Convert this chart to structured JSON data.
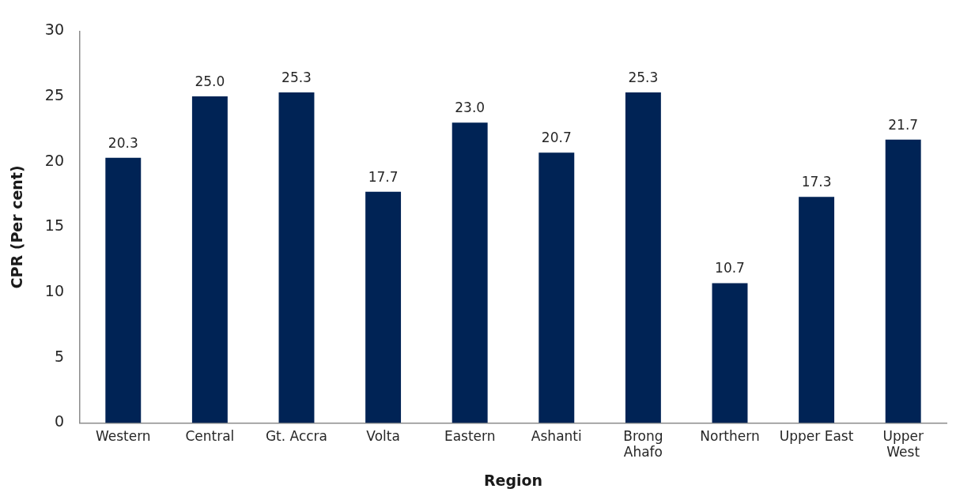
{
  "chart_data": {
    "type": "bar",
    "xlabel": "Region",
    "ylabel": "CPR (Per cent)",
    "categories": [
      "Western",
      "Central",
      "Gt. Accra",
      "Volta",
      "Eastern",
      "Ashanti",
      "Brong Ahafo",
      "Northern",
      "Upper East",
      "Upper West"
    ],
    "values": [
      20.3,
      25.0,
      25.3,
      17.7,
      23.0,
      20.7,
      25.3,
      10.7,
      17.3,
      21.7
    ],
    "value_labels": [
      "20.3",
      "25.0",
      "25.3",
      "17.7",
      "23.0",
      "20.7",
      "25.3",
      "10.7",
      "17.3",
      "21.7"
    ],
    "color": "#002355",
    "ylim": [
      0,
      30
    ],
    "yticks": [
      0,
      5,
      10,
      15,
      20,
      25,
      30
    ],
    "grid": false,
    "legend": false
  }
}
